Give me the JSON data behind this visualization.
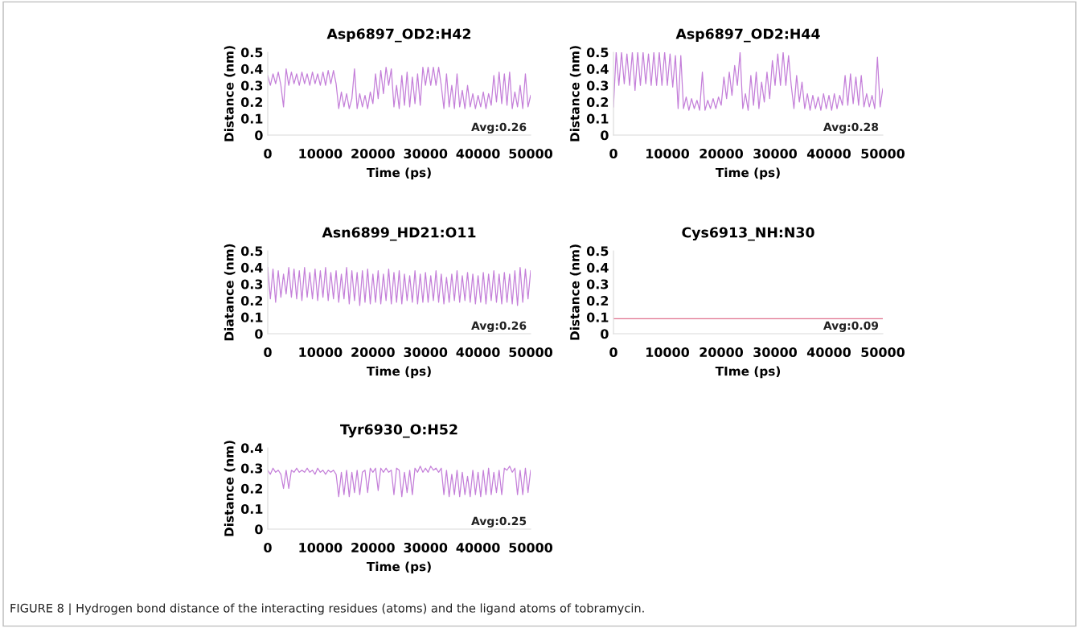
{
  "chart_data": [
    {
      "type": "line",
      "title": "Asp6897_OD2:H42",
      "xlabel": "Time (ps)",
      "ylabel": "Distance (nm)",
      "xlim": [
        0,
        50000
      ],
      "xticks": [
        0,
        10000,
        20000,
        30000,
        40000,
        50000
      ],
      "ylim": [
        0,
        0.5
      ],
      "yticks": [
        0,
        0.1,
        0.2,
        0.3,
        0.4,
        0.5
      ],
      "annotations": [
        "Avg:0.26"
      ],
      "x": [
        0,
        500,
        1000,
        1500,
        2000,
        2500,
        3000,
        3500,
        4000,
        4500,
        5000,
        5500,
        6000,
        6500,
        7000,
        7500,
        8000,
        8500,
        9000,
        9500,
        10000,
        10500,
        11000,
        11500,
        12000,
        12500,
        13000,
        13500,
        14000,
        14500,
        15000,
        15500,
        16000,
        16500,
        17000,
        17500,
        18000,
        18500,
        19000,
        19500,
        20000,
        20500,
        21000,
        21500,
        22000,
        22500,
        23000,
        23500,
        24000,
        24500,
        25000,
        25500,
        26000,
        26500,
        27000,
        27500,
        28000,
        28500,
        29000,
        29500,
        30000,
        30500,
        31000,
        31500,
        32000,
        32500,
        33000,
        33500,
        34000,
        34500,
        35000,
        35500,
        36000,
        36500,
        37000,
        37500,
        38000,
        38500,
        39000,
        39500,
        40000,
        40500,
        41000,
        41500,
        42000,
        42500,
        43000,
        43500,
        44000,
        44500,
        45000,
        45500,
        46000,
        46500,
        47000,
        47500,
        48000,
        48500,
        49000,
        49500,
        50000
      ],
      "series": [
        {
          "color": "#c47fd9",
          "values": [
            0.36,
            0.3,
            0.37,
            0.31,
            0.38,
            0.3,
            0.17,
            0.4,
            0.3,
            0.38,
            0.31,
            0.37,
            0.3,
            0.38,
            0.31,
            0.37,
            0.3,
            0.38,
            0.31,
            0.37,
            0.3,
            0.38,
            0.3,
            0.39,
            0.31,
            0.39,
            0.31,
            0.16,
            0.26,
            0.17,
            0.25,
            0.16,
            0.22,
            0.4,
            0.16,
            0.25,
            0.17,
            0.24,
            0.16,
            0.26,
            0.19,
            0.37,
            0.22,
            0.39,
            0.25,
            0.41,
            0.3,
            0.4,
            0.17,
            0.3,
            0.16,
            0.36,
            0.18,
            0.38,
            0.17,
            0.35,
            0.19,
            0.37,
            0.18,
            0.41,
            0.3,
            0.41,
            0.3,
            0.41,
            0.3,
            0.41,
            0.3,
            0.16,
            0.37,
            0.17,
            0.3,
            0.16,
            0.37,
            0.17,
            0.27,
            0.16,
            0.3,
            0.17,
            0.25,
            0.16,
            0.24,
            0.17,
            0.26,
            0.16,
            0.25,
            0.18,
            0.36,
            0.2,
            0.38,
            0.19,
            0.37,
            0.18,
            0.38,
            0.16,
            0.26,
            0.17,
            0.3,
            0.16,
            0.37,
            0.17,
            0.24
          ]
        }
      ]
    },
    {
      "type": "line",
      "title": "Asp6897_OD2:H44",
      "xlabel": "Time (ps)",
      "ylabel": "Distance (nm)",
      "xlim": [
        0,
        50000
      ],
      "xticks": [
        0,
        10000,
        20000,
        30000,
        40000,
        50000
      ],
      "ylim": [
        0,
        0.5
      ],
      "yticks": [
        0,
        0.1,
        0.2,
        0.3,
        0.4,
        0.5
      ],
      "annotations": [
        "Avg:0.28"
      ],
      "x": [
        0,
        500,
        1000,
        1500,
        2000,
        2500,
        3000,
        3500,
        4000,
        4500,
        5000,
        5500,
        6000,
        6500,
        7000,
        7500,
        8000,
        8500,
        9000,
        9500,
        10000,
        10500,
        11000,
        11500,
        12000,
        12500,
        13000,
        13500,
        14000,
        14500,
        15000,
        15500,
        16000,
        16500,
        17000,
        17500,
        18000,
        18500,
        19000,
        19500,
        20000,
        20500,
        21000,
        21500,
        22000,
        22500,
        23000,
        23500,
        24000,
        24500,
        25000,
        25500,
        26000,
        26500,
        27000,
        27500,
        28000,
        28500,
        29000,
        29500,
        30000,
        30500,
        31000,
        31500,
        32000,
        32500,
        33000,
        33500,
        34000,
        34500,
        35000,
        35500,
        36000,
        36500,
        37000,
        37500,
        38000,
        38500,
        39000,
        39500,
        40000,
        40500,
        41000,
        41500,
        42000,
        42500,
        43000,
        43500,
        44000,
        44500,
        45000,
        45500,
        46000,
        46500,
        47000,
        47500,
        48000,
        48500,
        49000,
        49500,
        50000
      ],
      "series": [
        {
          "color": "#c47fd9",
          "values": [
            0.17,
            0.5,
            0.3,
            0.5,
            0.31,
            0.49,
            0.3,
            0.5,
            0.27,
            0.5,
            0.3,
            0.5,
            0.31,
            0.49,
            0.3,
            0.5,
            0.3,
            0.5,
            0.3,
            0.5,
            0.3,
            0.49,
            0.29,
            0.48,
            0.16,
            0.48,
            0.16,
            0.23,
            0.15,
            0.22,
            0.16,
            0.21,
            0.15,
            0.38,
            0.15,
            0.21,
            0.16,
            0.22,
            0.16,
            0.23,
            0.18,
            0.35,
            0.22,
            0.38,
            0.24,
            0.42,
            0.3,
            0.5,
            0.16,
            0.25,
            0.15,
            0.36,
            0.18,
            0.38,
            0.16,
            0.32,
            0.2,
            0.38,
            0.22,
            0.45,
            0.3,
            0.49,
            0.3,
            0.5,
            0.3,
            0.48,
            0.3,
            0.16,
            0.36,
            0.2,
            0.32,
            0.16,
            0.25,
            0.15,
            0.24,
            0.16,
            0.23,
            0.15,
            0.25,
            0.16,
            0.24,
            0.15,
            0.25,
            0.16,
            0.24,
            0.18,
            0.36,
            0.18,
            0.37,
            0.19,
            0.35,
            0.18,
            0.36,
            0.17,
            0.25,
            0.17,
            0.24,
            0.16,
            0.47,
            0.17,
            0.28
          ]
        }
      ]
    },
    {
      "type": "line",
      "title": "Asn6899_HD21:O11",
      "xlabel": "Time (ps)",
      "ylabel": "Diatance (nm)",
      "xlim": [
        0,
        50000
      ],
      "xticks": [
        0,
        10000,
        20000,
        30000,
        40000,
        50000
      ],
      "ylim": [
        0,
        0.5
      ],
      "yticks": [
        0,
        0.1,
        0.2,
        0.3,
        0.4,
        0.5
      ],
      "annotations": [
        "Avg:0.26"
      ],
      "x": [
        0,
        500,
        1000,
        1500,
        2000,
        2500,
        3000,
        3500,
        4000,
        4500,
        5000,
        5500,
        6000,
        6500,
        7000,
        7500,
        8000,
        8500,
        9000,
        9500,
        10000,
        10500,
        11000,
        11500,
        12000,
        12500,
        13000,
        13500,
        14000,
        14500,
        15000,
        15500,
        16000,
        16500,
        17000,
        17500,
        18000,
        18500,
        19000,
        19500,
        20000,
        20500,
        21000,
        21500,
        22000,
        22500,
        23000,
        23500,
        24000,
        24500,
        25000,
        25500,
        26000,
        26500,
        27000,
        27500,
        28000,
        28500,
        29000,
        29500,
        30000,
        30500,
        31000,
        31500,
        32000,
        32500,
        33000,
        33500,
        34000,
        34500,
        35000,
        35500,
        36000,
        36500,
        37000,
        37500,
        38000,
        38500,
        39000,
        39500,
        40000,
        40500,
        41000,
        41500,
        42000,
        42500,
        43000,
        43500,
        44000,
        44500,
        45000,
        45500,
        46000,
        46500,
        47000,
        47500,
        48000,
        48500,
        49000,
        49500,
        50000
      ],
      "series": [
        {
          "color": "#c47fd9",
          "values": [
            0.4,
            0.21,
            0.39,
            0.19,
            0.38,
            0.22,
            0.36,
            0.24,
            0.4,
            0.22,
            0.39,
            0.21,
            0.38,
            0.2,
            0.4,
            0.22,
            0.37,
            0.21,
            0.39,
            0.2,
            0.38,
            0.22,
            0.4,
            0.2,
            0.37,
            0.21,
            0.38,
            0.19,
            0.36,
            0.21,
            0.4,
            0.18,
            0.38,
            0.2,
            0.37,
            0.17,
            0.38,
            0.19,
            0.39,
            0.18,
            0.36,
            0.19,
            0.38,
            0.18,
            0.36,
            0.2,
            0.39,
            0.18,
            0.37,
            0.19,
            0.38,
            0.18,
            0.36,
            0.2,
            0.35,
            0.19,
            0.38,
            0.18,
            0.36,
            0.19,
            0.37,
            0.19,
            0.35,
            0.2,
            0.38,
            0.19,
            0.36,
            0.18,
            0.34,
            0.19,
            0.36,
            0.2,
            0.38,
            0.19,
            0.35,
            0.2,
            0.37,
            0.19,
            0.36,
            0.18,
            0.35,
            0.19,
            0.37,
            0.18,
            0.36,
            0.2,
            0.38,
            0.19,
            0.36,
            0.18,
            0.37,
            0.19,
            0.36,
            0.18,
            0.38,
            0.17,
            0.4,
            0.19,
            0.39,
            0.21,
            0.38
          ]
        }
      ]
    },
    {
      "type": "line",
      "title": "Cys6913_NH:N30",
      "xlabel": "TIme (ps)",
      "ylabel": "Distance (nm)",
      "xlim": [
        0,
        50000
      ],
      "xticks": [
        0,
        10000,
        20000,
        30000,
        40000,
        50000
      ],
      "ylim": [
        0,
        0.5
      ],
      "yticks": [
        0,
        0.1,
        0.2,
        0.3,
        0.4,
        0.5
      ],
      "annotations": [
        "Avg:0.09"
      ],
      "x": [
        0,
        50000
      ],
      "series": [
        {
          "color": "#e0708c",
          "values": [
            0.09,
            0.09
          ]
        }
      ]
    },
    {
      "type": "line",
      "title": "Tyr6930_O:H52",
      "xlabel": "Time (ps)",
      "ylabel": "Distance (nm)",
      "xlim": [
        0,
        50000
      ],
      "xticks": [
        0,
        10000,
        20000,
        30000,
        40000,
        50000
      ],
      "ylim": [
        0,
        0.4
      ],
      "yticks": [
        0,
        0.1,
        0.2,
        0.3,
        0.4
      ],
      "annotations": [
        "Avg:0.25",
        "FIGURE 8 | Hydrogen bond distance of the interacting residues (atoms) and the ligand atoms of tobramycin."
      ],
      "x": [
        0,
        500,
        1000,
        1500,
        2000,
        2500,
        3000,
        3500,
        4000,
        4500,
        5000,
        5500,
        6000,
        6500,
        7000,
        7500,
        8000,
        8500,
        9000,
        9500,
        10000,
        10500,
        11000,
        11500,
        12000,
        12500,
        13000,
        13500,
        14000,
        14500,
        15000,
        15500,
        16000,
        16500,
        17000,
        17500,
        18000,
        18500,
        19000,
        19500,
        20000,
        20500,
        21000,
        21500,
        22000,
        22500,
        23000,
        23500,
        24000,
        24500,
        25000,
        25500,
        26000,
        26500,
        27000,
        27500,
        28000,
        28500,
        29000,
        29500,
        30000,
        30500,
        31000,
        31500,
        32000,
        32500,
        33000,
        33500,
        34000,
        34500,
        35000,
        35500,
        36000,
        36500,
        37000,
        37500,
        38000,
        38500,
        39000,
        39500,
        40000,
        40500,
        41000,
        41500,
        42000,
        42500,
        43000,
        43500,
        44000,
        44500,
        45000,
        45500,
        46000,
        46500,
        47000,
        47500,
        48000,
        48500,
        49000,
        49500,
        50000
      ],
      "series": [
        {
          "color": "#c47fd9",
          "values": [
            0.29,
            0.27,
            0.3,
            0.28,
            0.29,
            0.27,
            0.2,
            0.29,
            0.2,
            0.29,
            0.28,
            0.3,
            0.28,
            0.29,
            0.28,
            0.3,
            0.28,
            0.29,
            0.27,
            0.3,
            0.28,
            0.29,
            0.27,
            0.29,
            0.28,
            0.29,
            0.27,
            0.16,
            0.28,
            0.17,
            0.29,
            0.16,
            0.28,
            0.18,
            0.29,
            0.17,
            0.28,
            0.29,
            0.18,
            0.3,
            0.28,
            0.3,
            0.19,
            0.3,
            0.28,
            0.3,
            0.28,
            0.29,
            0.17,
            0.3,
            0.29,
            0.16,
            0.28,
            0.18,
            0.29,
            0.17,
            0.3,
            0.28,
            0.31,
            0.28,
            0.3,
            0.28,
            0.31,
            0.29,
            0.3,
            0.28,
            0.3,
            0.17,
            0.29,
            0.16,
            0.27,
            0.17,
            0.29,
            0.16,
            0.28,
            0.17,
            0.26,
            0.16,
            0.29,
            0.17,
            0.28,
            0.16,
            0.29,
            0.17,
            0.3,
            0.17,
            0.28,
            0.18,
            0.29,
            0.17,
            0.3,
            0.29,
            0.31,
            0.28,
            0.3,
            0.17,
            0.29,
            0.17,
            0.3,
            0.18,
            0.29
          ]
        }
      ]
    }
  ]
}
